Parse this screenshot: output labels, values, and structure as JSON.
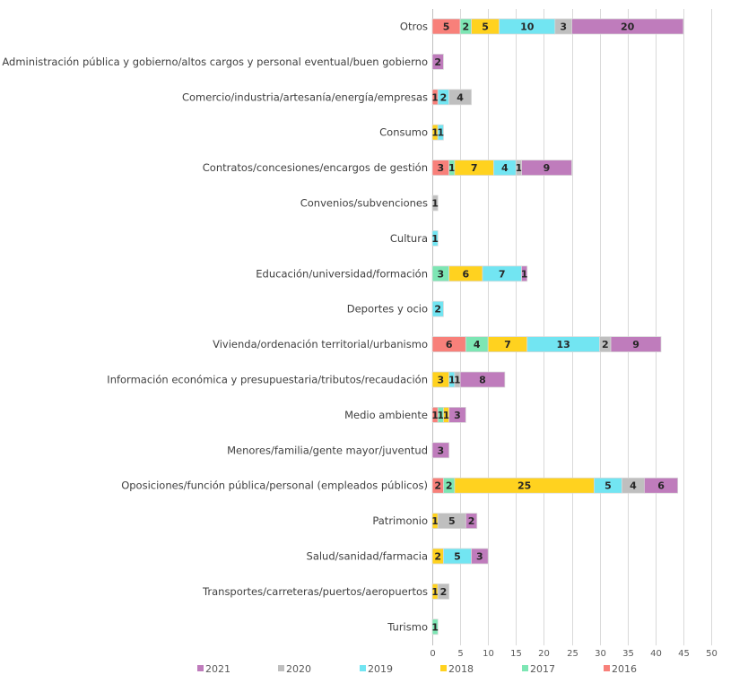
{
  "chart_data": {
    "type": "bar",
    "orientation": "horizontal",
    "stacked": true,
    "title": "",
    "xlabel": "",
    "ylabel": "",
    "xlim": [
      0,
      50
    ],
    "xticks": [
      0,
      5,
      10,
      15,
      20,
      25,
      30,
      35,
      40,
      45,
      50
    ],
    "grid": "vertical",
    "legend_position": "bottom",
    "categories": [
      "Otros",
      "Administración pública y gobierno/altos cargos y personal eventual/buen gobierno",
      "Comercio/industria/artesanía/energía/empresas",
      "Consumo",
      "Contratos/concesiones/encargos de gestión",
      "Convenios/subvenciones",
      "Cultura",
      "Educación/universidad/formación",
      "Deportes y ocio",
      "Vivienda/ordenación territorial/urbanismo",
      "Información económica y presupuestaria/tributos/recaudación",
      "Medio ambiente",
      "Menores/familia/gente mayor/juventud",
      "Oposiciones/función pública/personal (empleados públicos)",
      "Patrimonio",
      "Salud/sanidad/farmacia",
      "Transportes/carreteras/puertos/aeropuertos",
      "Turismo"
    ],
    "series": [
      {
        "name": "2016",
        "color": "#F8807A",
        "values": [
          5,
          0,
          1,
          0,
          3,
          0,
          0,
          0,
          0,
          6,
          0,
          1,
          0,
          2,
          0,
          0,
          0,
          0
        ]
      },
      {
        "name": "2017",
        "color": "#7DE6B4",
        "values": [
          2,
          0,
          0,
          0,
          1,
          0,
          0,
          3,
          0,
          4,
          0,
          1,
          0,
          2,
          0,
          0,
          0,
          1
        ]
      },
      {
        "name": "2018",
        "color": "#FFD21F",
        "values": [
          5,
          0,
          0,
          1,
          7,
          0,
          0,
          6,
          0,
          7,
          3,
          1,
          0,
          25,
          1,
          2,
          1,
          0
        ]
      },
      {
        "name": "2019",
        "color": "#72E5F2",
        "values": [
          10,
          0,
          2,
          1,
          4,
          0,
          1,
          7,
          2,
          13,
          1,
          0,
          0,
          5,
          0,
          5,
          0,
          0
        ]
      },
      {
        "name": "2020",
        "color": "#BFBFBF",
        "values": [
          3,
          0,
          4,
          0,
          1,
          1,
          0,
          0,
          0,
          2,
          1,
          0,
          0,
          4,
          5,
          0,
          2,
          0
        ]
      },
      {
        "name": "2021",
        "color": "#BF7CBC",
        "values": [
          20,
          2,
          0,
          0,
          9,
          0,
          0,
          1,
          0,
          9,
          8,
          3,
          3,
          6,
          2,
          3,
          0,
          0
        ]
      }
    ],
    "legend_order": [
      "2021",
      "2020",
      "2019",
      "2018",
      "2017",
      "2016"
    ]
  }
}
